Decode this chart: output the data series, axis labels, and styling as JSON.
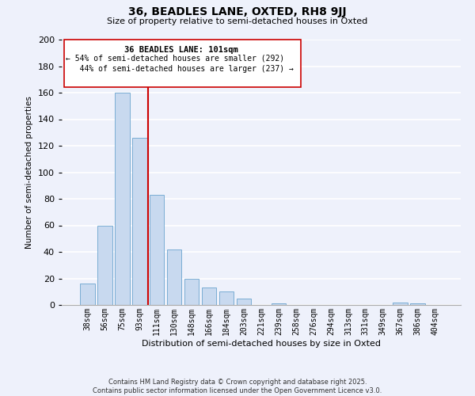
{
  "title": "36, BEADLES LANE, OXTED, RH8 9JJ",
  "subtitle": "Size of property relative to semi-detached houses in Oxted",
  "xlabel": "Distribution of semi-detached houses by size in Oxted",
  "ylabel": "Number of semi-detached properties",
  "bar_labels": [
    "38sqm",
    "56sqm",
    "75sqm",
    "93sqm",
    "111sqm",
    "130sqm",
    "148sqm",
    "166sqm",
    "184sqm",
    "203sqm",
    "221sqm",
    "239sqm",
    "258sqm",
    "276sqm",
    "294sqm",
    "313sqm",
    "331sqm",
    "349sqm",
    "367sqm",
    "386sqm",
    "404sqm"
  ],
  "bar_values": [
    16,
    60,
    160,
    126,
    83,
    42,
    20,
    13,
    10,
    5,
    0,
    1,
    0,
    0,
    0,
    0,
    0,
    0,
    2,
    1,
    0
  ],
  "bar_color": "#c8d9ef",
  "bar_edge_color": "#7aadd4",
  "ylim": [
    0,
    200
  ],
  "yticks": [
    0,
    20,
    40,
    60,
    80,
    100,
    120,
    140,
    160,
    180,
    200
  ],
  "vline_color": "#cc0000",
  "annotation_title": "36 BEADLES LANE: 101sqm",
  "annotation_line1": "← 54% of semi-detached houses are smaller (292)",
  "annotation_line2": "   44% of semi-detached houses are larger (237) →",
  "footer1": "Contains HM Land Registry data © Crown copyright and database right 2025.",
  "footer2": "Contains public sector information licensed under the Open Government Licence v3.0.",
  "background_color": "#eef1fb",
  "grid_color": "#ffffff"
}
